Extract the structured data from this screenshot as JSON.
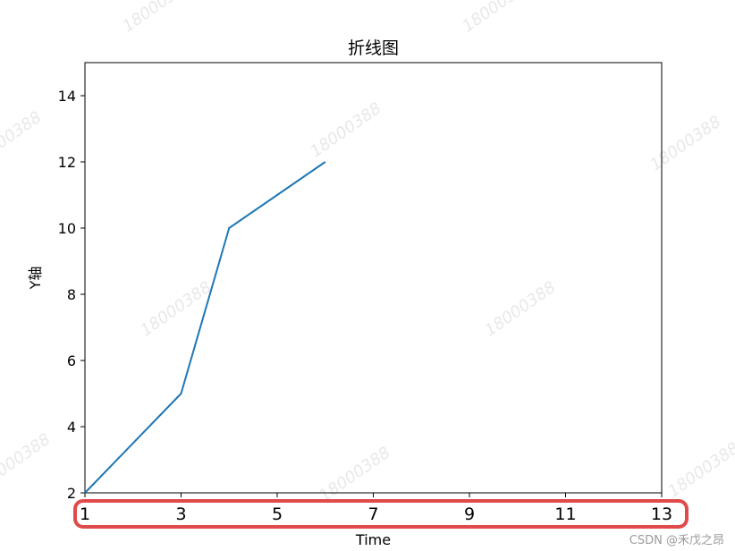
{
  "chart_data": {
    "type": "line",
    "title": "折线图",
    "xlabel": "Time",
    "ylabel": "Y轴",
    "x": [
      1,
      3,
      4,
      6
    ],
    "series": [
      {
        "values": [
          2,
          5,
          10,
          12
        ],
        "color": "#1f77b4"
      }
    ],
    "xlim": [
      1,
      13
    ],
    "ylim": [
      2,
      15
    ],
    "x_ticks": [
      1,
      3,
      5,
      7,
      9,
      11,
      13
    ],
    "y_ticks": [
      2,
      4,
      6,
      8,
      10,
      12,
      14
    ],
    "grid": false,
    "annotations": [
      {
        "type": "highlight-box",
        "target": "x-tick-labels",
        "color": "#e04a4a"
      }
    ]
  },
  "watermark_text": "18000388",
  "credit": "CSDN @禾戊之昂"
}
